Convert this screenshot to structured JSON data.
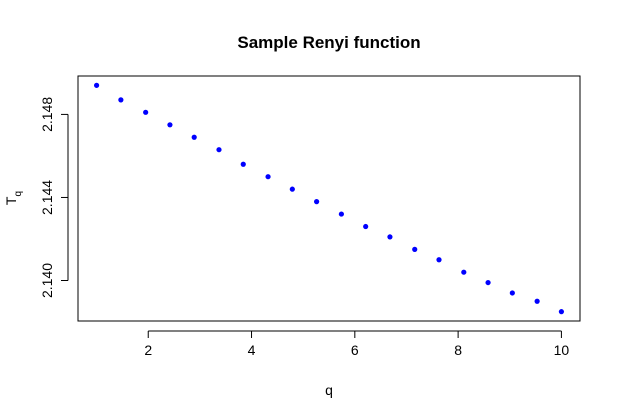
{
  "chart_data": {
    "type": "scatter",
    "title": "Sample Renyi function",
    "xlabel": "q",
    "ylabel_main": "T",
    "ylabel_sub": "q",
    "xlim": [
      0.64,
      10.36
    ],
    "ylim": [
      2.13805,
      2.14985
    ],
    "xticks": [
      2,
      4,
      6,
      8,
      10
    ],
    "xtick_labels": [
      "2",
      "4",
      "6",
      "8",
      "10"
    ],
    "yticks": [
      2.14,
      2.144,
      2.148
    ],
    "ytick_labels": [
      "2.140",
      "2.144",
      "2.148"
    ],
    "grid": false,
    "point_color": "#0000ff",
    "x": [
      1.0,
      1.47,
      1.95,
      2.42,
      2.89,
      3.37,
      3.84,
      4.32,
      4.79,
      5.26,
      5.74,
      6.21,
      6.68,
      7.16,
      7.63,
      8.11,
      8.58,
      9.05,
      9.53,
      10.0
    ],
    "y": [
      2.1494,
      2.1487,
      2.1481,
      2.1475,
      2.1469,
      2.1463,
      2.1456,
      2.145,
      2.1444,
      2.1438,
      2.1432,
      2.1426,
      2.1421,
      2.1415,
      2.141,
      2.1404,
      2.1399,
      2.1394,
      2.139,
      2.1385
    ]
  }
}
